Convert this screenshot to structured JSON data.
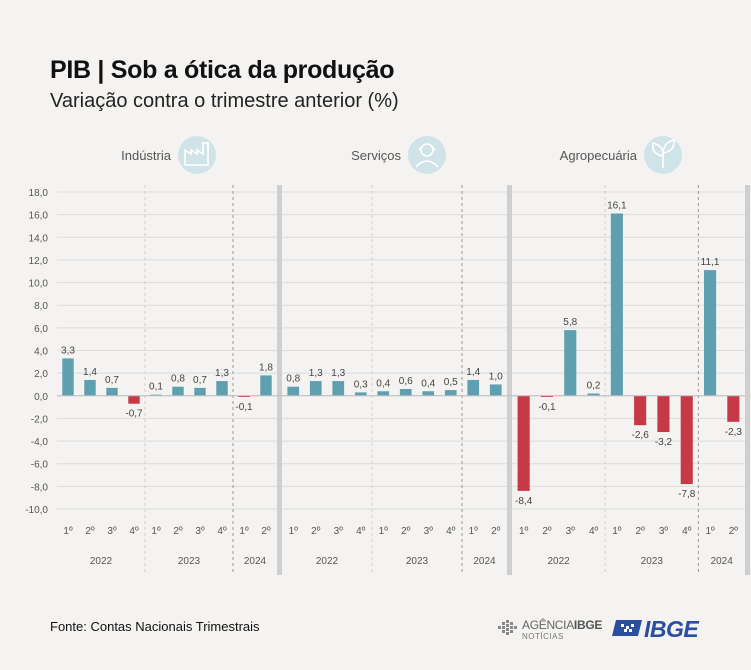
{
  "title": "PIB | Sob a ótica da produção",
  "subtitle": "Variação contra o trimestre anterior (%)",
  "source": "Fonte: Contas Nacionais Trimestrais",
  "logos": {
    "agencia_line1": "AGÊNCIA",
    "agencia_line1_bold": "IBGE",
    "agencia_line2": "NOTÍCIAS",
    "ibge": "IBGE"
  },
  "colors": {
    "positive": "#5e9fb0",
    "negative": "#c63a47",
    "icon_bg": "#cfe3e8",
    "icon_fg": "#5e9fb0",
    "grid": "#dcdcdc"
  },
  "chart_data": {
    "type": "bar",
    "ylim": [
      -10,
      18
    ],
    "yticks": [
      "18,0",
      "16,0",
      "14,0",
      "12,0",
      "10,0",
      "8,0",
      "6,0",
      "4,0",
      "2,0",
      "0,0",
      "-2,0",
      "-4,0",
      "-6,0",
      "-8,0",
      "-10,0"
    ],
    "categories": [
      "1º",
      "2º",
      "3º",
      "4º",
      "1º",
      "2º",
      "3º",
      "4º",
      "1º",
      "2º"
    ],
    "year_groups": [
      {
        "year": "2022",
        "count": 4
      },
      {
        "year": "2023",
        "count": 4
      },
      {
        "year": "2024",
        "count": 2
      }
    ],
    "series": [
      {
        "name": "Indústria",
        "icon": "factory-icon",
        "values": [
          3.3,
          1.4,
          0.7,
          -0.7,
          0.1,
          0.8,
          0.7,
          1.3,
          -0.1,
          1.8
        ],
        "labels": [
          "3,3",
          "1,4",
          "0,7",
          "-0,7",
          "0,1",
          "0,8",
          "0,7",
          "1,3",
          "-0,1",
          "1,8"
        ]
      },
      {
        "name": "Serviços",
        "icon": "person-headset-icon",
        "values": [
          0.8,
          1.3,
          1.3,
          0.3,
          0.4,
          0.6,
          0.4,
          0.5,
          1.4,
          1.0
        ],
        "labels": [
          "0,8",
          "1,3",
          "1,3",
          "0,3",
          "0,4",
          "0,6",
          "0,4",
          "0,5",
          "1,4",
          "1,0"
        ]
      },
      {
        "name": "Agropecuária",
        "icon": "plant-icon",
        "values": [
          -8.4,
          -0.1,
          5.8,
          0.2,
          16.1,
          -2.6,
          -3.2,
          -7.8,
          11.1,
          -2.3
        ],
        "labels": [
          "-8,4",
          "-0,1",
          "5,8",
          "0,2",
          "16,1",
          "-2,6",
          "-3,2",
          "-7,8",
          "11,1",
          "-2,3"
        ]
      }
    ]
  }
}
